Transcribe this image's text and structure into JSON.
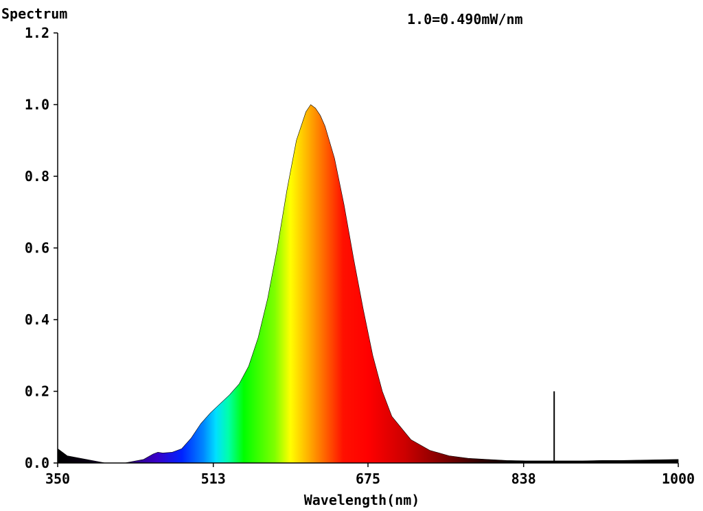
{
  "chart_data": {
    "type": "area",
    "title": "Spectrum",
    "annotation": "1.0=0.490mW/nm",
    "xlabel": "Wavelength(nm)",
    "ylabel": "",
    "xlim": [
      350,
      1000
    ],
    "ylim": [
      0,
      1.2
    ],
    "x_ticks": [
      350,
      513,
      675,
      838,
      1000
    ],
    "y_ticks": [
      0.0,
      0.2,
      0.4,
      0.6,
      0.8,
      1.0,
      1.2
    ],
    "grid": false,
    "fill": "visible-spectrum colors by wavelength",
    "series": [
      {
        "x": [
          350,
          360,
          380,
          400,
          420,
          440,
          450,
          455,
          460,
          470,
          480,
          490,
          500,
          510,
          520,
          530,
          540,
          550,
          560,
          570,
          580,
          590,
          600,
          610,
          615,
          620,
          625,
          630,
          640,
          650,
          660,
          670,
          680,
          690,
          700,
          720,
          740,
          760,
          780,
          800,
          820,
          840,
          860,
          870,
          880,
          900,
          920,
          940,
          960,
          980,
          1000
        ],
        "y": [
          0.04,
          0.02,
          0.01,
          0.0,
          0.0,
          0.01,
          0.025,
          0.03,
          0.028,
          0.03,
          0.04,
          0.07,
          0.11,
          0.14,
          0.165,
          0.19,
          0.22,
          0.27,
          0.35,
          0.46,
          0.6,
          0.76,
          0.9,
          0.98,
          1.0,
          0.99,
          0.97,
          0.94,
          0.85,
          0.72,
          0.57,
          0.43,
          0.3,
          0.2,
          0.13,
          0.065,
          0.035,
          0.02,
          0.013,
          0.01,
          0.007,
          0.006,
          0.006,
          0.006,
          0.006,
          0.006,
          0.007,
          0.007,
          0.008,
          0.009,
          0.01
        ]
      }
    ],
    "spike": {
      "x": 870,
      "y": 0.2
    }
  }
}
